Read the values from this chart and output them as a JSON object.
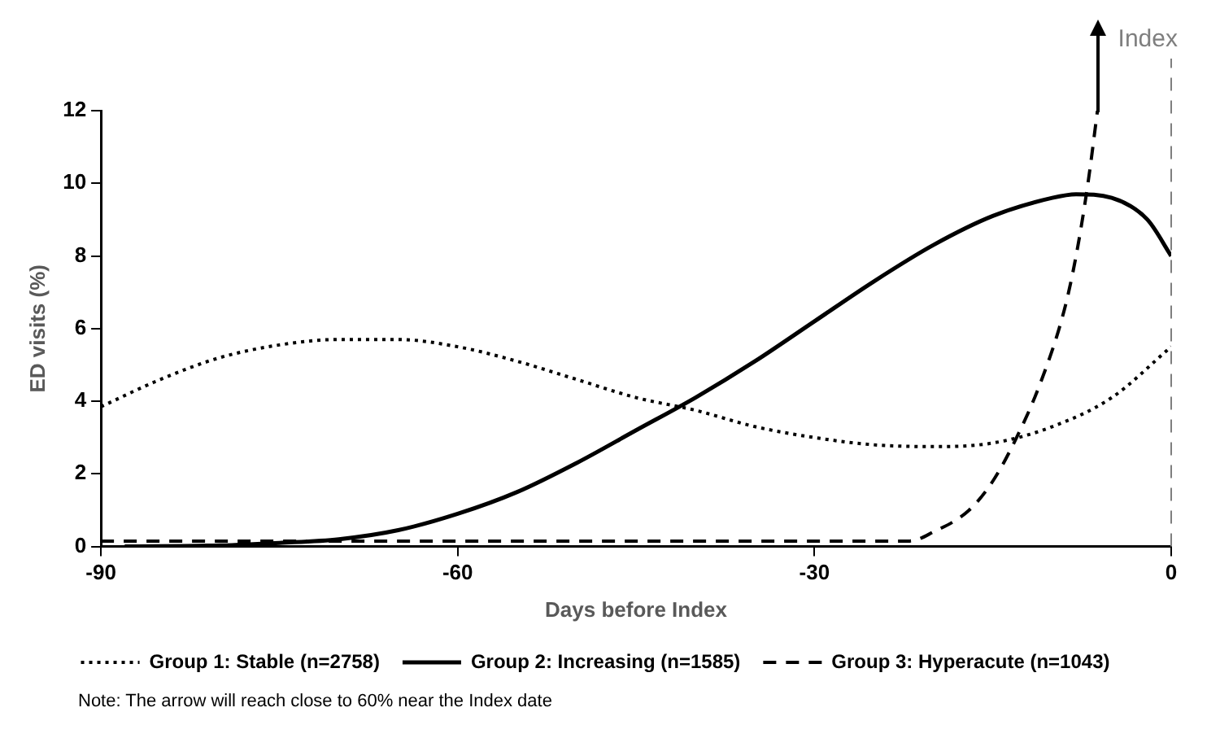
{
  "chart_data": {
    "type": "line",
    "xlabel": "Days before Index",
    "ylabel": "ED visits (%)",
    "xlim": [
      -90,
      0
    ],
    "xticks": [
      -90,
      -60,
      -30,
      0
    ],
    "ylim": [
      0,
      12
    ],
    "yticks": [
      0,
      2,
      4,
      6,
      8,
      10,
      12
    ],
    "grid": false,
    "marker": "none",
    "legend": "bottom",
    "series": [
      {
        "name": "Group 1: Stable (n=2758)",
        "color": "#000000",
        "line_style": "dotted",
        "x": [
          -90,
          -85,
          -80,
          -75,
          -70,
          -65,
          -60,
          -55,
          -50,
          -45,
          -40,
          -35,
          -30,
          -25,
          -20,
          -15,
          -10,
          -5,
          0
        ],
        "values": [
          3.85,
          4.6,
          5.2,
          5.55,
          5.7,
          5.7,
          5.5,
          5.1,
          4.6,
          4.1,
          3.75,
          3.3,
          3.0,
          2.8,
          2.75,
          2.85,
          3.3,
          4.1,
          5.5
        ]
      },
      {
        "name": "Group 2: Increasing (n=1585)",
        "color": "#000000",
        "line_style": "solid",
        "x": [
          -88,
          -80,
          -75,
          -70,
          -65,
          -60,
          -55,
          -50,
          -45,
          -40,
          -35,
          -30,
          -25,
          -20,
          -15,
          -10,
          -8,
          -5,
          -2,
          0
        ],
        "values": [
          0,
          0.03,
          0.1,
          0.2,
          0.45,
          0.9,
          1.5,
          2.3,
          3.2,
          4.1,
          5.1,
          6.2,
          7.3,
          8.3,
          9.1,
          9.6,
          9.7,
          9.6,
          9.0,
          8.0
        ]
      },
      {
        "name": "Group 3: Hyperacute (n=1043)",
        "color": "#000000",
        "line_style": "dashed",
        "x": [
          -90,
          -60,
          -30,
          -22,
          -20,
          -17,
          -15,
          -13,
          -11,
          -9,
          -8,
          -7,
          -6.2
        ],
        "values": [
          0.15,
          0.15,
          0.15,
          0.15,
          0.4,
          1.0,
          1.8,
          3.0,
          4.5,
          6.5,
          8.0,
          10.0,
          12
        ]
      }
    ],
    "ref_lines": [
      {
        "axis": "x",
        "value": 0,
        "label": "Index",
        "color": "#7f7f7f",
        "line_style": "dashed"
      }
    ],
    "annotations": [
      "Note: The arrow will reach close to 60% near the Index date"
    ]
  }
}
